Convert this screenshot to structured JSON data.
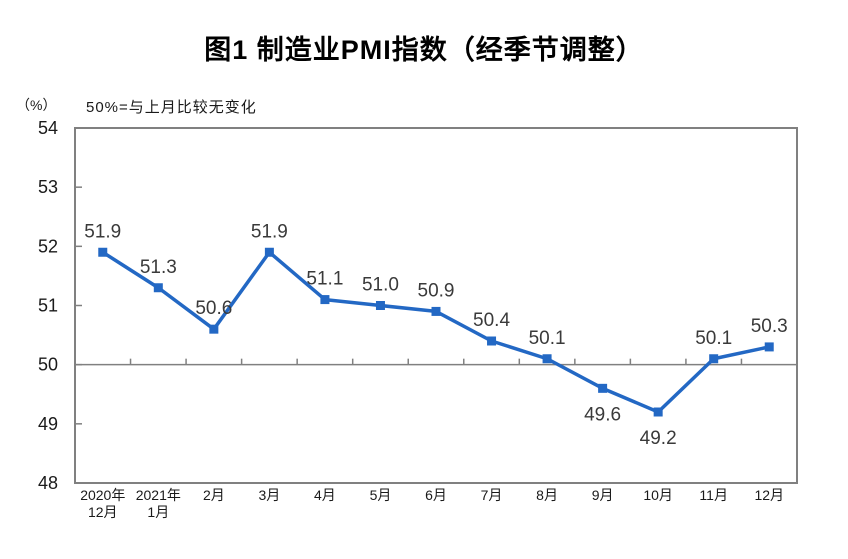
{
  "title": "图1 制造业PMI指数（经季节调整）",
  "unit_label": "（%）",
  "annotation": "50%=与上月比较无变化",
  "chart_data": {
    "type": "line",
    "title": "图1 制造业PMI指数（经季节调整）",
    "unit": "（%）",
    "note": "50%=与上月比较无变化",
    "categories": [
      "2020年12月",
      "2021年1月",
      "2月",
      "3月",
      "4月",
      "5月",
      "6月",
      "7月",
      "8月",
      "9月",
      "10月",
      "11月",
      "12月"
    ],
    "category_label_lines": [
      [
        "2020年",
        "12月"
      ],
      [
        "2021年",
        "1月"
      ],
      [
        "2月"
      ],
      [
        "3月"
      ],
      [
        "4月"
      ],
      [
        "5月"
      ],
      [
        "6月"
      ],
      [
        "7月"
      ],
      [
        "8月"
      ],
      [
        "9月"
      ],
      [
        "10月"
      ],
      [
        "11月"
      ],
      [
        "12月"
      ]
    ],
    "series": [
      {
        "name": "制造业PMI指数",
        "values": [
          51.9,
          51.3,
          50.6,
          51.9,
          51.1,
          51.0,
          50.9,
          50.4,
          50.1,
          49.6,
          49.2,
          50.1,
          50.3
        ]
      }
    ],
    "data_label_positions": [
      "above",
      "above",
      "above",
      "above",
      "above",
      "above",
      "above",
      "above",
      "above",
      "below",
      "below",
      "above",
      "above"
    ],
    "ylim": [
      48,
      54
    ],
    "yticks": [
      54,
      53,
      52,
      51,
      50,
      49,
      48
    ],
    "reference_y": 50,
    "grid": false,
    "legend": "none",
    "marker": "square",
    "colors": {
      "line": "#2368c4",
      "axis": "#808080",
      "data_label": "#3a3a3a",
      "tick_text": "#1a1a1a"
    }
  }
}
